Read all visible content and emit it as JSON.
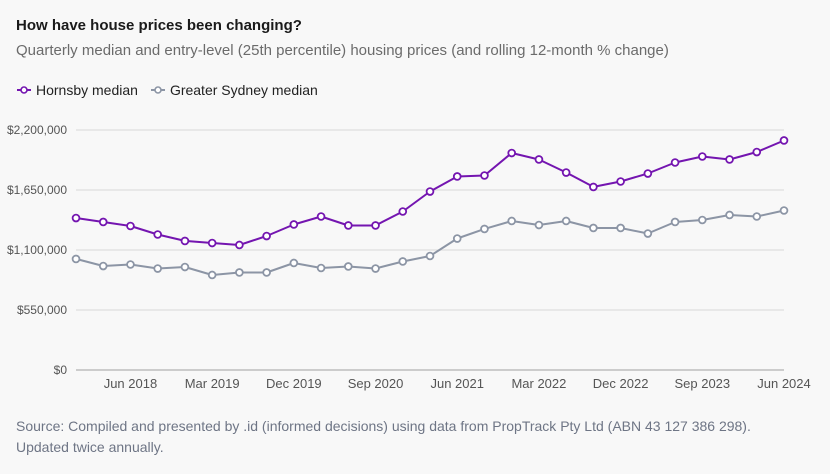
{
  "header": {
    "title": "How have house prices been changing?",
    "subtitle": "Quarterly median and entry-level (25th percentile) housing prices (and rolling 12-month % change)"
  },
  "legend": [
    {
      "label": "Hornsby median",
      "color": "#7415b0"
    },
    {
      "label": "Greater Sydney median",
      "color": "#8c95a5"
    }
  ],
  "source": "Source: Compiled and presented by .id (informed decisions) using data from PropTrack Pty Ltd (ABN 43 127 386 298). Updated twice annually.",
  "chart_data": {
    "type": "line",
    "title": "How have house prices been changing?",
    "subtitle": "Quarterly median and entry-level (25th percentile) housing prices (and rolling 12-month % change)",
    "xlabel": "",
    "ylabel": "",
    "ylim": [
      0,
      2200000
    ],
    "yticks": [
      0,
      550000,
      1100000,
      1650000,
      2200000
    ],
    "ytick_labels": [
      "$0",
      "$550,000",
      "$1,100,000",
      "$1,650,000",
      "$2,200,000"
    ],
    "grid": true,
    "legend_position": "top-left",
    "x": [
      "Dec 2017",
      "Mar 2018",
      "Jun 2018",
      "Sep 2018",
      "Dec 2018",
      "Mar 2019",
      "Jun 2019",
      "Sep 2019",
      "Dec 2019",
      "Mar 2020",
      "Jun 2020",
      "Sep 2020",
      "Dec 2020",
      "Mar 2021",
      "Jun 2021",
      "Sep 2021",
      "Dec 2021",
      "Mar 2022",
      "Jun 2022",
      "Sep 2022",
      "Dec 2022",
      "Mar 2023",
      "Jun 2023",
      "Sep 2023",
      "Dec 2023",
      "Mar 2024",
      "Jun 2024"
    ],
    "xtick_labels": [
      "Jun 2018",
      "Mar 2019",
      "Dec 2019",
      "Sep 2020",
      "Jun 2021",
      "Mar 2022",
      "Dec 2022",
      "Sep 2023",
      "Jun 2024"
    ],
    "series": [
      {
        "name": "Hornsby median",
        "color": "#7415b0",
        "values": [
          1393000,
          1357000,
          1320000,
          1242000,
          1183000,
          1164000,
          1146000,
          1228000,
          1334000,
          1407000,
          1325000,
          1325000,
          1453000,
          1636000,
          1774000,
          1783000,
          1989000,
          1930000,
          1810000,
          1678000,
          1728000,
          1801000,
          1902000,
          1957000,
          1930000,
          1998000,
          2104000
        ]
      },
      {
        "name": "Greater Sydney median",
        "color": "#8c95a5",
        "values": [
          1018000,
          953000,
          967000,
          930000,
          944000,
          871000,
          894000,
          894000,
          981000,
          935000,
          949000,
          930000,
          995000,
          1045000,
          1205000,
          1293000,
          1366000,
          1329000,
          1366000,
          1302000,
          1302000,
          1251000,
          1357000,
          1375000,
          1421000,
          1407000,
          1462000
        ]
      }
    ]
  }
}
